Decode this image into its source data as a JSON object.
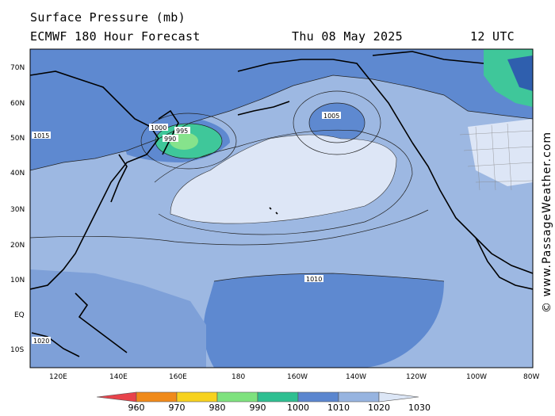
{
  "header": {
    "title": "Surface Pressure (mb)",
    "model": "ECMWF 180 Hour Forecast",
    "date": "Thu 08 May 2025",
    "time": "12 UTC"
  },
  "credit": "© www.PassageWeather.com",
  "axes": {
    "lat_labels": [
      "70N",
      "60N",
      "50N",
      "40N",
      "30N",
      "20N",
      "10N",
      "EQ",
      "10S"
    ],
    "lon_labels": [
      "120E",
      "140E",
      "160E",
      "180",
      "160W",
      "140W",
      "120W",
      "100W",
      "80W"
    ]
  },
  "colorbar": {
    "labels": [
      "960",
      "970",
      "980",
      "990",
      "1000",
      "1010",
      "1020",
      "1030"
    ],
    "colors": [
      "#e8434b",
      "#f08a1a",
      "#f7d21e",
      "#7ee27e",
      "#2fbf91",
      "#5b86cf",
      "#97b4e0",
      "#dce6f6"
    ]
  },
  "isobar_labels": [
    {
      "text": "995"
    },
    {
      "text": "990"
    },
    {
      "text": "1000"
    },
    {
      "text": "1005"
    },
    {
      "text": "1010"
    },
    {
      "text": "1015"
    },
    {
      "text": "1020"
    }
  ],
  "map_colors": {
    "p1000_1010": "#5e89d0",
    "p1010_1020": "#9db8e2",
    "p1020_1030": "#dde6f6",
    "p990_1000": "#3fc79a",
    "p980_990": "#86e38c",
    "land": "#000000"
  }
}
